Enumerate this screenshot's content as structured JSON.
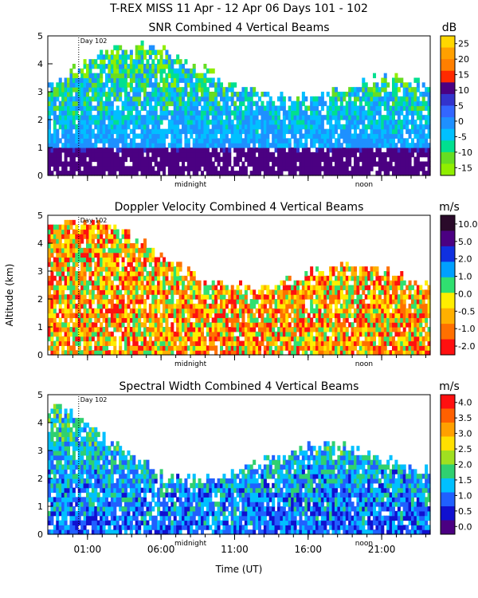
{
  "figure": {
    "title": "T-REX MISS   11 Apr - 12 Apr 06 Days 101 - 102",
    "ylabel": "Altitude (km)",
    "xlabel": "Time (UT)",
    "day_marker": "Day 102",
    "midnight_label": "midnight",
    "noon_label": "noon",
    "x_ticks": [
      {
        "hour": 1,
        "label": "01:00"
      },
      {
        "hour": 6,
        "label": "06:00"
      },
      {
        "hour": 11,
        "label": "11:00"
      },
      {
        "hour": 16,
        "label": "16:00"
      },
      {
        "hour": 21,
        "label": "21:00"
      }
    ],
    "y_ticks": [
      "0",
      "1",
      "2",
      "3",
      "4",
      "5"
    ]
  },
  "chart_data": [
    {
      "type": "heatmap",
      "title": "SNR Combined 4 Vertical Beams",
      "unit": "dB",
      "xlabel": "",
      "ylabel": "",
      "xlim": [
        -1.7,
        24.3
      ],
      "ylim": [
        0,
        5
      ],
      "colorbar": {
        "labels": [
          "25",
          "20",
          "15",
          "10",
          "5",
          "0",
          "-5",
          "-10",
          "-15"
        ],
        "colors": [
          "#ffd700",
          "#ffa000",
          "#ff7f00",
          "#ff2a00",
          "#4b0082",
          "#3333cc",
          "#3366ff",
          "#1e90ff",
          "#00c0ff",
          "#00e090",
          "#66dd22",
          "#90ee00"
        ]
      }
    },
    {
      "type": "heatmap",
      "title": "Doppler Velocity Combined 4 Vertical Beams",
      "unit": "m/s",
      "xlabel": "",
      "ylabel": "Altitude (km)",
      "xlim": [
        -1.7,
        24.3
      ],
      "ylim": [
        0,
        5
      ],
      "colorbar": {
        "labels": [
          "10.0",
          "5.0",
          "2.0",
          "1.0",
          "0.0",
          "-0.5",
          "-1.0",
          "-2.0"
        ],
        "colors": [
          "#2a0a2a",
          "#4b0082",
          "#1030e0",
          "#00a0ff",
          "#30e070",
          "#ffee00",
          "#ffb000",
          "#ff7000",
          "#ff1010"
        ]
      }
    },
    {
      "type": "heatmap",
      "title": "Spectral Width Combined 4 Vertical Beams",
      "unit": "m/s",
      "xlabel": "Time (UT)",
      "ylabel": "",
      "xlim": [
        -1.7,
        24.3
      ],
      "ylim": [
        0,
        5
      ],
      "colorbar": {
        "labels": [
          "4.0",
          "3.5",
          "3.0",
          "2.5",
          "2.0",
          "1.5",
          "1.0",
          "0.5",
          "0.0"
        ],
        "colors": [
          "#ff1010",
          "#ff6000",
          "#ffa000",
          "#ffe000",
          "#a0e020",
          "#30d070",
          "#00c0ff",
          "#2060ff",
          "#1010d0",
          "#4b0082"
        ]
      }
    }
  ]
}
